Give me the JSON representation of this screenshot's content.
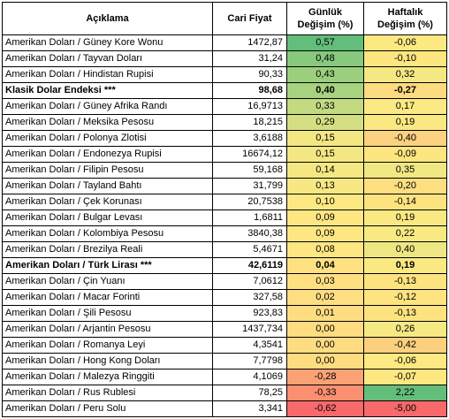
{
  "headers": {
    "name": "Açıklama",
    "price": "Cari Fiyat",
    "daily_line1": "Günlük",
    "daily_line2": "Değişim (%)",
    "weekly_line1": "Haftalık",
    "weekly_line2": "Değişim (%)"
  },
  "rows": [
    {
      "name": "Amerikan Doları / Güney Kore Wonu",
      "price": "1472,87",
      "daily": "0,57",
      "weekly": "-0,06",
      "bold": false,
      "daily_color": "#63be7b",
      "weekly_color": "#fde981"
    },
    {
      "name": "Amerikan Doları / Tayvan Doları",
      "price": "31,24",
      "daily": "0,48",
      "weekly": "-0,10",
      "bold": false,
      "daily_color": "#87c97d",
      "weekly_color": "#fde580"
    },
    {
      "name": "Amerikan Doları / Hindistan Rupisi",
      "price": "90,33",
      "daily": "0,43",
      "weekly": "0,32",
      "bold": false,
      "daily_color": "#9bcf7e",
      "weekly_color": "#f4e883"
    },
    {
      "name": "Klasik Dolar Endeksi ***",
      "price": "98,68",
      "daily": "0,40",
      "weekly": "-0,27",
      "bold": true,
      "daily_color": "#a7d27f",
      "weekly_color": "#fddb80"
    },
    {
      "name": "Amerikan Doları / Güney Afrika Randı",
      "price": "16,9713",
      "daily": "0,33",
      "weekly": "0,17",
      "bold": false,
      "daily_color": "#c3da80",
      "weekly_color": "#fbea83"
    },
    {
      "name": "Amerikan Doları / Meksika Pesosu",
      "price": "18,215",
      "daily": "0,29",
      "weekly": "0,19",
      "bold": false,
      "daily_color": "#d3df82",
      "weekly_color": "#fae983"
    },
    {
      "name": "Amerikan Doları / Polonya Zlotisi",
      "price": "3,6188",
      "daily": "0,15",
      "weekly": "-0,40",
      "bold": false,
      "daily_color": "#f3e783",
      "weekly_color": "#fcd17f"
    },
    {
      "name": "Amerikan Doları / Endonezya Rupisi",
      "price": "16674,12",
      "daily": "0,15",
      "weekly": "-0,09",
      "bold": false,
      "daily_color": "#f3e783",
      "weekly_color": "#fde580"
    },
    {
      "name": "Amerikan Doları / Filipin Pesosu",
      "price": "59,168",
      "daily": "0,14",
      "weekly": "0,35",
      "bold": false,
      "daily_color": "#f5e883",
      "weekly_color": "#f1e783"
    },
    {
      "name": "Amerikan Doları / Tayland Bahtı",
      "price": "31,799",
      "daily": "0,13",
      "weekly": "-0,20",
      "bold": false,
      "daily_color": "#f7e883",
      "weekly_color": "#fddf80"
    },
    {
      "name": "Amerikan Doları / Çek Korunası",
      "price": "20,7538",
      "daily": "0,10",
      "weekly": "-0,14",
      "bold": false,
      "daily_color": "#fde983",
      "weekly_color": "#fde380"
    },
    {
      "name": "Amerikan Doları / Bulgar Levası",
      "price": "1,6811",
      "daily": "0,09",
      "weekly": "0,19",
      "bold": false,
      "daily_color": "#fee783",
      "weekly_color": "#fae983"
    },
    {
      "name": "Amerikan Doları / Kolombiya Pesosu",
      "price": "3840,38",
      "daily": "0,09",
      "weekly": "0,22",
      "bold": false,
      "daily_color": "#fee783",
      "weekly_color": "#f8e983"
    },
    {
      "name": "Amerikan Doları / Brezilya Reali",
      "price": "5,4671",
      "daily": "0,08",
      "weekly": "0,40",
      "bold": false,
      "daily_color": "#fee683",
      "weekly_color": "#eee683"
    },
    {
      "name": "Amerikan Doları / Türk Lirası ***",
      "price": "42,6119",
      "daily": "0,04",
      "weekly": "0,19",
      "bold": true,
      "daily_color": "#fee182",
      "weekly_color": "#fae983"
    },
    {
      "name": "Amerikan Doları / Çin Yuanı",
      "price": "7,0612",
      "daily": "0,03",
      "weekly": "-0,13",
      "bold": false,
      "daily_color": "#fee082",
      "weekly_color": "#fde380"
    },
    {
      "name": "Amerikan Doları / Macar Forinti",
      "price": "327,58",
      "daily": "0,02",
      "weekly": "-0,12",
      "bold": false,
      "daily_color": "#fede82",
      "weekly_color": "#fde480"
    },
    {
      "name": "Amerikan Doları / Şili Pesosu",
      "price": "923,83",
      "daily": "0,01",
      "weekly": "-0,13",
      "bold": false,
      "daily_color": "#fedd82",
      "weekly_color": "#fde380"
    },
    {
      "name": "Amerikan Doları / Arjantin Pesosu",
      "price": "1437,734",
      "daily": "0,00",
      "weekly": "0,26",
      "bold": false,
      "daily_color": "#fedc82",
      "weekly_color": "#f6e983"
    },
    {
      "name": "Amerikan Doları / Romanya Leyi",
      "price": "4,3541",
      "daily": "0,00",
      "weekly": "-0,42",
      "bold": false,
      "daily_color": "#fedc82",
      "weekly_color": "#fcd07f"
    },
    {
      "name": "Amerikan Doları / Hong Kong Doları",
      "price": "7,7798",
      "daily": "0,00",
      "weekly": "-0,06",
      "bold": false,
      "daily_color": "#fedc82",
      "weekly_color": "#fde981"
    },
    {
      "name": "Amerikan Doları / Malezya Ringgiti",
      "price": "4,1069",
      "daily": "-0,28",
      "weekly": "-0,07",
      "bold": false,
      "daily_color": "#fba275",
      "weekly_color": "#fde781"
    },
    {
      "name": "Amerikan Doları / Rus Rublesi",
      "price": "78,25",
      "daily": "-0,33",
      "weekly": "2,22",
      "bold": false,
      "daily_color": "#fa8f71",
      "weekly_color": "#63be7b"
    },
    {
      "name": "Amerikan Doları / Peru Solu",
      "price": "3,341",
      "daily": "-0,62",
      "weekly": "-5,00",
      "bold": false,
      "daily_color": "#f8696b",
      "weekly_color": "#f8696b"
    }
  ]
}
